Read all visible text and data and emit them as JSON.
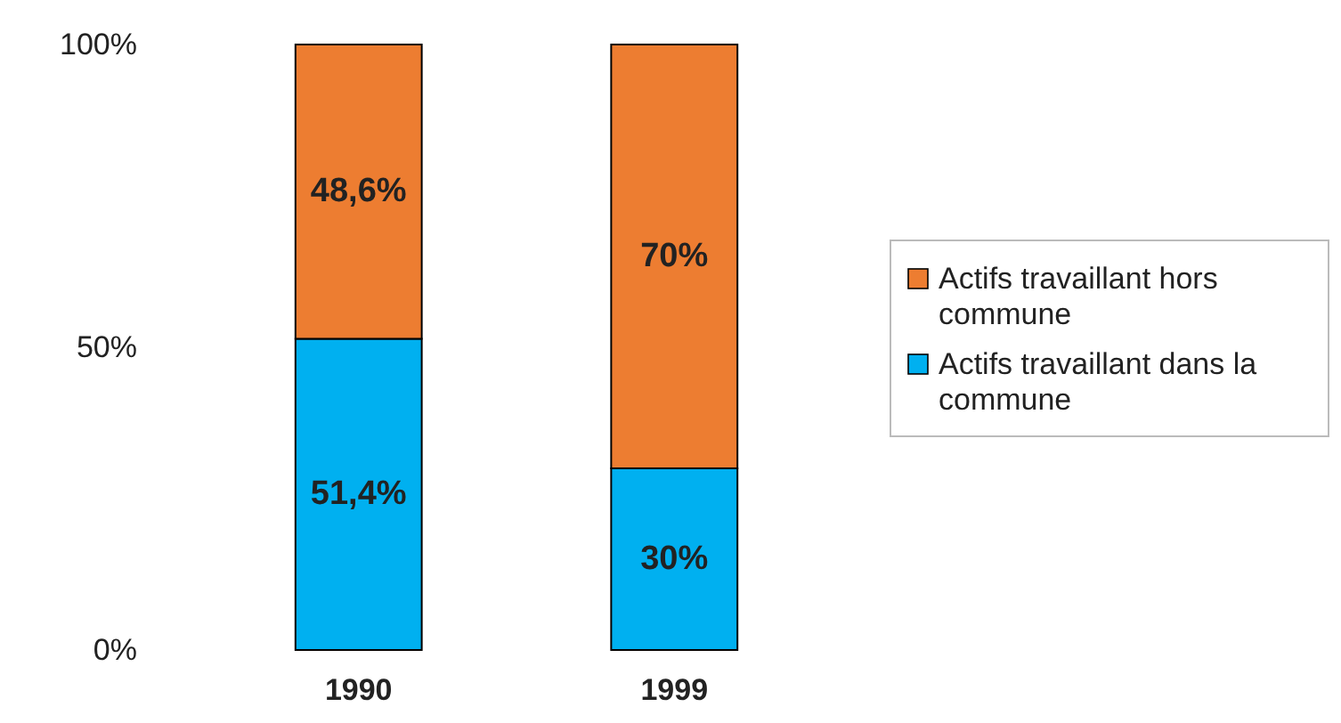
{
  "chart_data": {
    "type": "bar",
    "stacked": true,
    "categories": [
      "1990",
      "1999"
    ],
    "series": [
      {
        "name": "Actifs travaillant dans la commune",
        "color": "#00b0f0",
        "values": [
          51.4,
          30
        ],
        "value_labels": [
          "51,4%",
          "30%"
        ]
      },
      {
        "name": "Actifs travaillant hors commune",
        "color": "#ed7d31",
        "values": [
          48.6,
          70
        ],
        "value_labels": [
          "48,6%",
          "70%"
        ]
      }
    ],
    "ylim": [
      0,
      100
    ],
    "yticks": [
      {
        "value": 0,
        "label": "0%"
      },
      {
        "value": 50,
        "label": "50%"
      },
      {
        "value": 100,
        "label": "100%"
      }
    ],
    "grid": false,
    "legend": "right"
  }
}
